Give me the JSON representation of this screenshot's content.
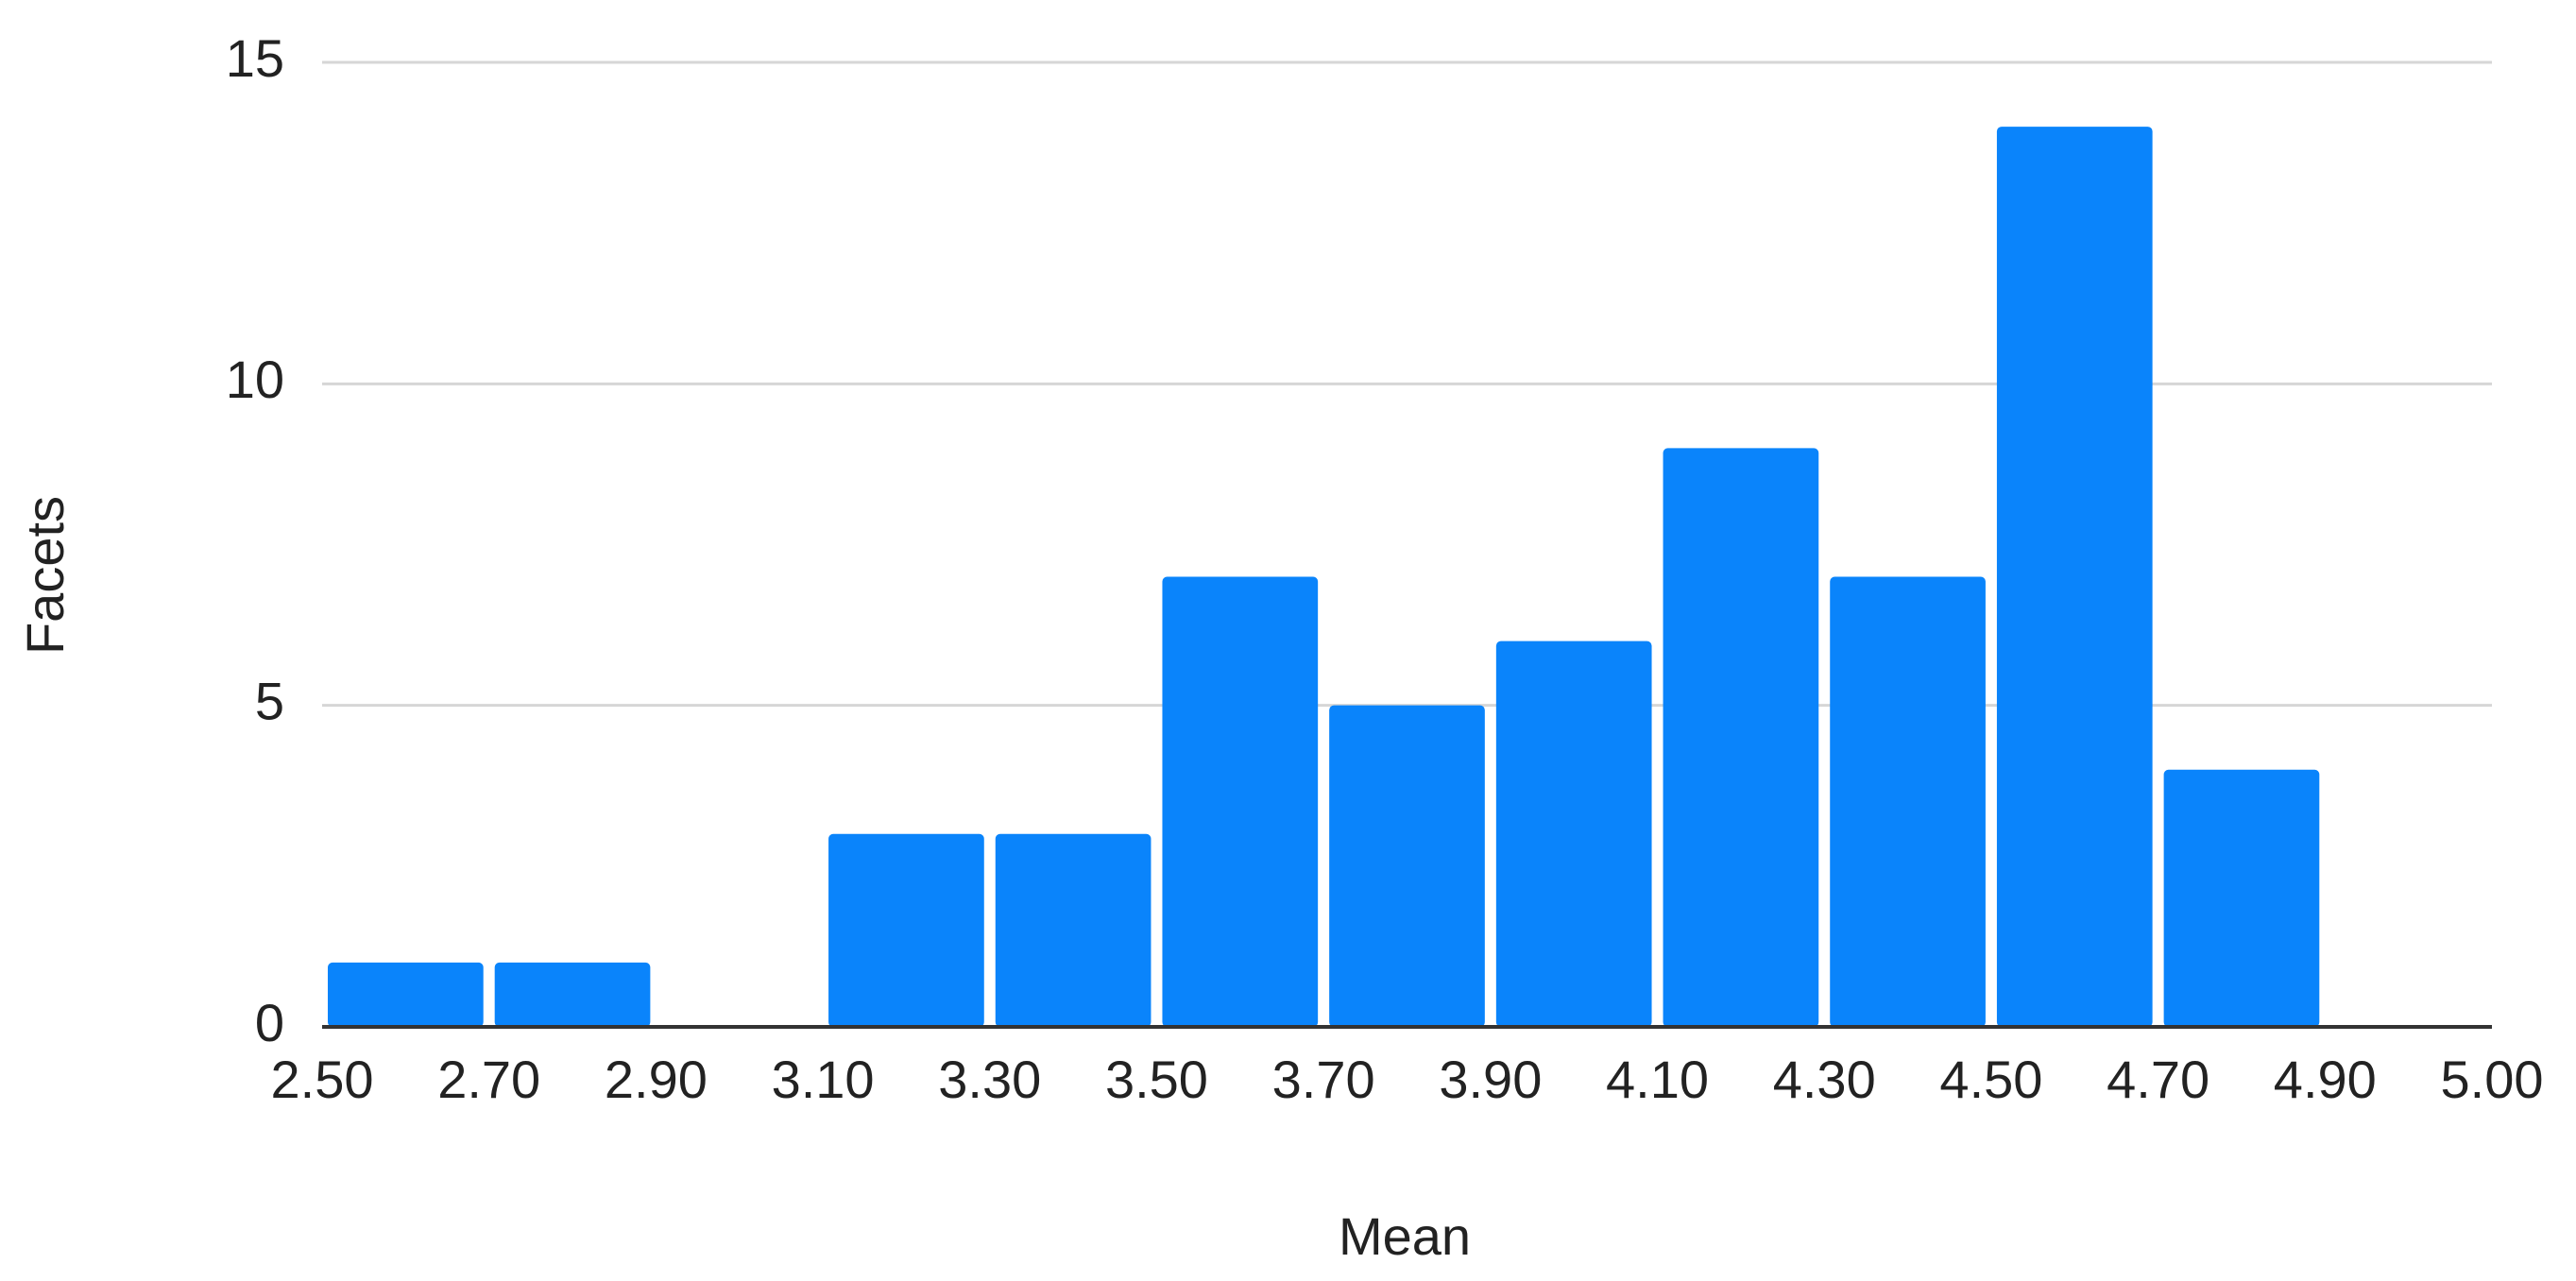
{
  "chart_data": {
    "type": "histogram",
    "x_label": "Mean",
    "y_label": "Facets",
    "bins": [
      2.5,
      2.7,
      2.9,
      3.1,
      3.3,
      3.5,
      3.7,
      3.9,
      4.1,
      4.3,
      4.5,
      4.7,
      4.9,
      5.0
    ],
    "values": [
      1,
      1,
      0,
      3,
      3,
      7,
      5,
      6,
      9,
      7,
      14,
      4,
      0
    ],
    "color": "#0a84fb",
    "xticks": [
      {
        "value": 2.5,
        "label": "2.50"
      },
      {
        "value": 2.7,
        "label": "2.70"
      },
      {
        "value": 2.9,
        "label": "2.90"
      },
      {
        "value": 3.1,
        "label": "3.10"
      },
      {
        "value": 3.3,
        "label": "3.30"
      },
      {
        "value": 3.5,
        "label": "3.50"
      },
      {
        "value": 3.7,
        "label": "3.70"
      },
      {
        "value": 3.9,
        "label": "3.90"
      },
      {
        "value": 4.1,
        "label": "4.10"
      },
      {
        "value": 4.3,
        "label": "4.30"
      },
      {
        "value": 4.5,
        "label": "4.50"
      },
      {
        "value": 4.7,
        "label": "4.70"
      },
      {
        "value": 4.9,
        "label": "4.90"
      },
      {
        "value": 5.0,
        "label": "5.00"
      }
    ],
    "ylim": [
      0,
      15
    ],
    "yticks": [
      0,
      5,
      10,
      15
    ],
    "grid": true
  }
}
